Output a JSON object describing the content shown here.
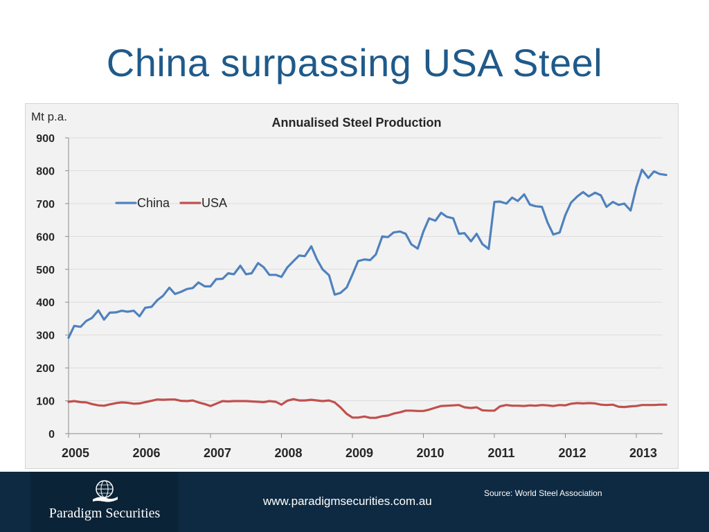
{
  "slide": {
    "title": "China surpassing USA Steel"
  },
  "footer": {
    "company": "Paradigm Securities",
    "website": "www.paradigmsecurities.com.au",
    "source": "Source: World Steel Association",
    "logo_icon": "globe-hand-icon"
  },
  "colors": {
    "title": "#1f5a8a",
    "china": "#4f81bd",
    "usa": "#c0504d",
    "footer_bg": "#0e2a42"
  },
  "chart_data": {
    "type": "line",
    "title": "Annualised Steel Production",
    "ylabel": "Mt p.a.",
    "xlabel": "",
    "ylim": [
      0,
      900
    ],
    "yticks": [
      "0",
      "100",
      "200",
      "300",
      "400",
      "500",
      "600",
      "700",
      "800",
      "900"
    ],
    "xlim": [
      2005,
      2013.42
    ],
    "xticks": [
      "2005",
      "2006",
      "2007",
      "2008",
      "2009",
      "2010",
      "2011",
      "2012",
      "2013"
    ],
    "grid": true,
    "legend": "top-left",
    "series": [
      {
        "name": "China",
        "color": "#4f81bd",
        "x": [
          2005.0,
          2005.08,
          2005.17,
          2005.25,
          2005.33,
          2005.42,
          2005.5,
          2005.58,
          2005.67,
          2005.75,
          2005.83,
          2005.92,
          2006.0,
          2006.08,
          2006.17,
          2006.25,
          2006.33,
          2006.42,
          2006.5,
          2006.58,
          2006.67,
          2006.75,
          2006.83,
          2006.92,
          2007.0,
          2007.08,
          2007.17,
          2007.25,
          2007.33,
          2007.42,
          2007.5,
          2007.58,
          2007.67,
          2007.75,
          2007.83,
          2007.92,
          2008.0,
          2008.08,
          2008.17,
          2008.25,
          2008.33,
          2008.42,
          2008.5,
          2008.58,
          2008.67,
          2008.75,
          2008.83,
          2008.92,
          2009.0,
          2009.08,
          2009.17,
          2009.25,
          2009.33,
          2009.42,
          2009.5,
          2009.58,
          2009.67,
          2009.75,
          2009.83,
          2009.92,
          2010.0,
          2010.08,
          2010.17,
          2010.25,
          2010.33,
          2010.42,
          2010.5,
          2010.58,
          2010.67,
          2010.75,
          2010.83,
          2010.92,
          2011.0,
          2011.08,
          2011.17,
          2011.25,
          2011.33,
          2011.42,
          2011.5,
          2011.58,
          2011.67,
          2011.75,
          2011.83,
          2011.92,
          2012.0,
          2012.08,
          2012.17,
          2012.25,
          2012.33,
          2012.42,
          2012.5,
          2012.58,
          2012.67,
          2012.75,
          2012.83,
          2012.92,
          2013.0,
          2013.08,
          2013.17,
          2013.25,
          2013.33,
          2013.42
        ],
        "values": [
          292,
          328,
          325,
          343,
          352,
          375,
          347,
          368,
          369,
          374,
          371,
          374,
          357,
          383,
          386,
          406,
          419,
          444,
          425,
          431,
          440,
          443,
          460,
          448,
          448,
          470,
          471,
          488,
          485,
          511,
          485,
          488,
          519,
          506,
          483,
          483,
          477,
          505,
          525,
          542,
          540,
          570,
          530,
          500,
          482,
          423,
          428,
          445,
          484,
          525,
          530,
          528,
          545,
          600,
          598,
          612,
          615,
          608,
          576,
          563,
          615,
          655,
          648,
          672,
          660,
          655,
          608,
          610,
          585,
          608,
          577,
          562,
          705,
          706,
          700,
          718,
          708,
          728,
          697,
          692,
          690,
          642,
          606,
          612,
          665,
          703,
          722,
          735,
          722,
          733,
          725,
          690,
          705,
          696,
          700,
          679,
          750,
          803,
          778,
          798,
          790,
          787
        ]
      },
      {
        "name": "USA",
        "color": "#c0504d",
        "x": [
          2005.0,
          2005.08,
          2005.17,
          2005.25,
          2005.33,
          2005.42,
          2005.5,
          2005.58,
          2005.67,
          2005.75,
          2005.83,
          2005.92,
          2006.0,
          2006.08,
          2006.17,
          2006.25,
          2006.33,
          2006.42,
          2006.5,
          2006.58,
          2006.67,
          2006.75,
          2006.83,
          2006.92,
          2007.0,
          2007.08,
          2007.17,
          2007.25,
          2007.33,
          2007.42,
          2007.5,
          2007.58,
          2007.67,
          2007.75,
          2007.83,
          2007.92,
          2008.0,
          2008.08,
          2008.17,
          2008.25,
          2008.33,
          2008.42,
          2008.5,
          2008.58,
          2008.67,
          2008.75,
          2008.83,
          2008.92,
          2009.0,
          2009.08,
          2009.17,
          2009.25,
          2009.33,
          2009.42,
          2009.5,
          2009.58,
          2009.67,
          2009.75,
          2009.83,
          2009.92,
          2010.0,
          2010.08,
          2010.17,
          2010.25,
          2010.33,
          2010.42,
          2010.5,
          2010.58,
          2010.67,
          2010.75,
          2010.83,
          2010.92,
          2011.0,
          2011.08,
          2011.17,
          2011.25,
          2011.33,
          2011.42,
          2011.5,
          2011.58,
          2011.67,
          2011.75,
          2011.83,
          2011.92,
          2012.0,
          2012.08,
          2012.17,
          2012.25,
          2012.33,
          2012.42,
          2012.5,
          2012.58,
          2012.67,
          2012.75,
          2012.83,
          2012.92,
          2013.0,
          2013.08,
          2013.17,
          2013.25,
          2013.33,
          2013.42
        ],
        "values": [
          97,
          99,
          96,
          95,
          90,
          86,
          85,
          89,
          93,
          95,
          94,
          91,
          92,
          96,
          100,
          104,
          103,
          104,
          104,
          100,
          99,
          101,
          95,
          90,
          84,
          91,
          99,
          98,
          99,
          99,
          99,
          98,
          97,
          96,
          99,
          97,
          88,
          100,
          105,
          101,
          101,
          103,
          101,
          99,
          101,
          95,
          80,
          60,
          49,
          49,
          52,
          48,
          48,
          53,
          55,
          61,
          65,
          70,
          70,
          69,
          69,
          73,
          79,
          84,
          85,
          86,
          87,
          80,
          78,
          80,
          71,
          70,
          70,
          83,
          87,
          85,
          85,
          84,
          86,
          85,
          87,
          86,
          84,
          87,
          86,
          91,
          93,
          92,
          93,
          92,
          88,
          87,
          88,
          82,
          81,
          83,
          84,
          87,
          87,
          87,
          88,
          88
        ]
      }
    ]
  }
}
